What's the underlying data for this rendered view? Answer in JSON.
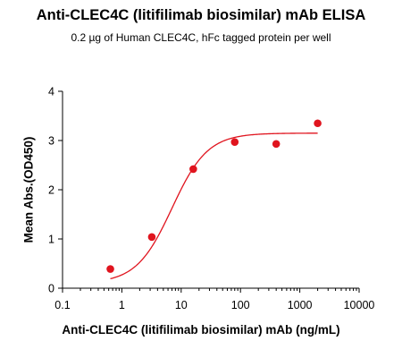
{
  "chart_data": {
    "type": "scatter",
    "title": "Anti-CLEC4C (litifilimab biosimilar) mAb ELISA",
    "subtitle": "0.2 µg of Human CLEC4C, hFc tagged protein per well",
    "xlabel": "Anti-CLEC4C (litifilimab biosimilar) mAb (ng/mL)",
    "ylabel": "Mean Abs.(OD450)",
    "x_scale": "log",
    "xlim": [
      0.1,
      10000
    ],
    "ylim": [
      0,
      4
    ],
    "x_ticks": [
      "0.1",
      "1",
      "10",
      "100",
      "1000",
      "10000"
    ],
    "y_ticks": [
      "0",
      "1",
      "2",
      "3",
      "4"
    ],
    "grid": false,
    "colors": {
      "points": "#e0141e",
      "curve": "#e0141e",
      "axis": "#000000"
    },
    "series": [
      {
        "x": [
          0.64,
          3.2,
          16,
          80,
          400,
          2000
        ],
        "y": [
          0.39,
          1.04,
          2.42,
          2.97,
          2.93,
          3.35
        ]
      }
    ],
    "fit": {
      "type": "4PL",
      "bottom": 0.1,
      "top": 3.15,
      "ec50": 7.0,
      "hill": 1.45,
      "x_range": [
        0.64,
        2000
      ]
    }
  }
}
